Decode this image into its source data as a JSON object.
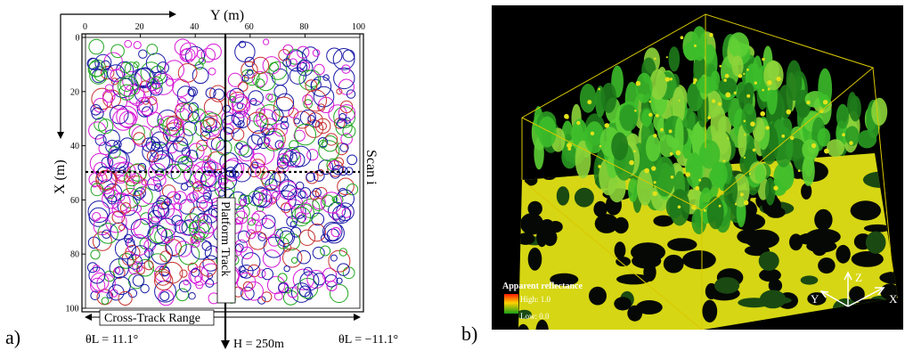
{
  "panel_a": {
    "label": "a)",
    "y_axis_title": "Y (m)",
    "x_axis_title": "X (m)",
    "top_ticks": [
      "0",
      "20",
      "40",
      "60",
      "80",
      "100"
    ],
    "left_ticks": [
      "0",
      "20",
      "40",
      "60",
      "80",
      "100"
    ],
    "scan_label": "Scan i",
    "track_label": "Platform Track",
    "cross_track_label": "Cross-Track Range",
    "theta_left": "θL = 11.1°",
    "theta_right": "θL = −11.1°",
    "altitude": "H = 250m",
    "circle_colors": [
      "#1a1aa8",
      "#d81ad8",
      "#22a822",
      "#c83232"
    ]
  },
  "panel_b": {
    "label": "b)",
    "legend_title": "Apparent reflectance",
    "legend_high": "High: 1.0",
    "legend_low": "Low: 0.0",
    "axis_z": "Z",
    "axis_y": "Y",
    "axis_x": "X",
    "bg_color": "#000000",
    "box_color": "#d8c800",
    "canopy_color": "#3cbc2a",
    "ground_color": "#e2e21a"
  }
}
